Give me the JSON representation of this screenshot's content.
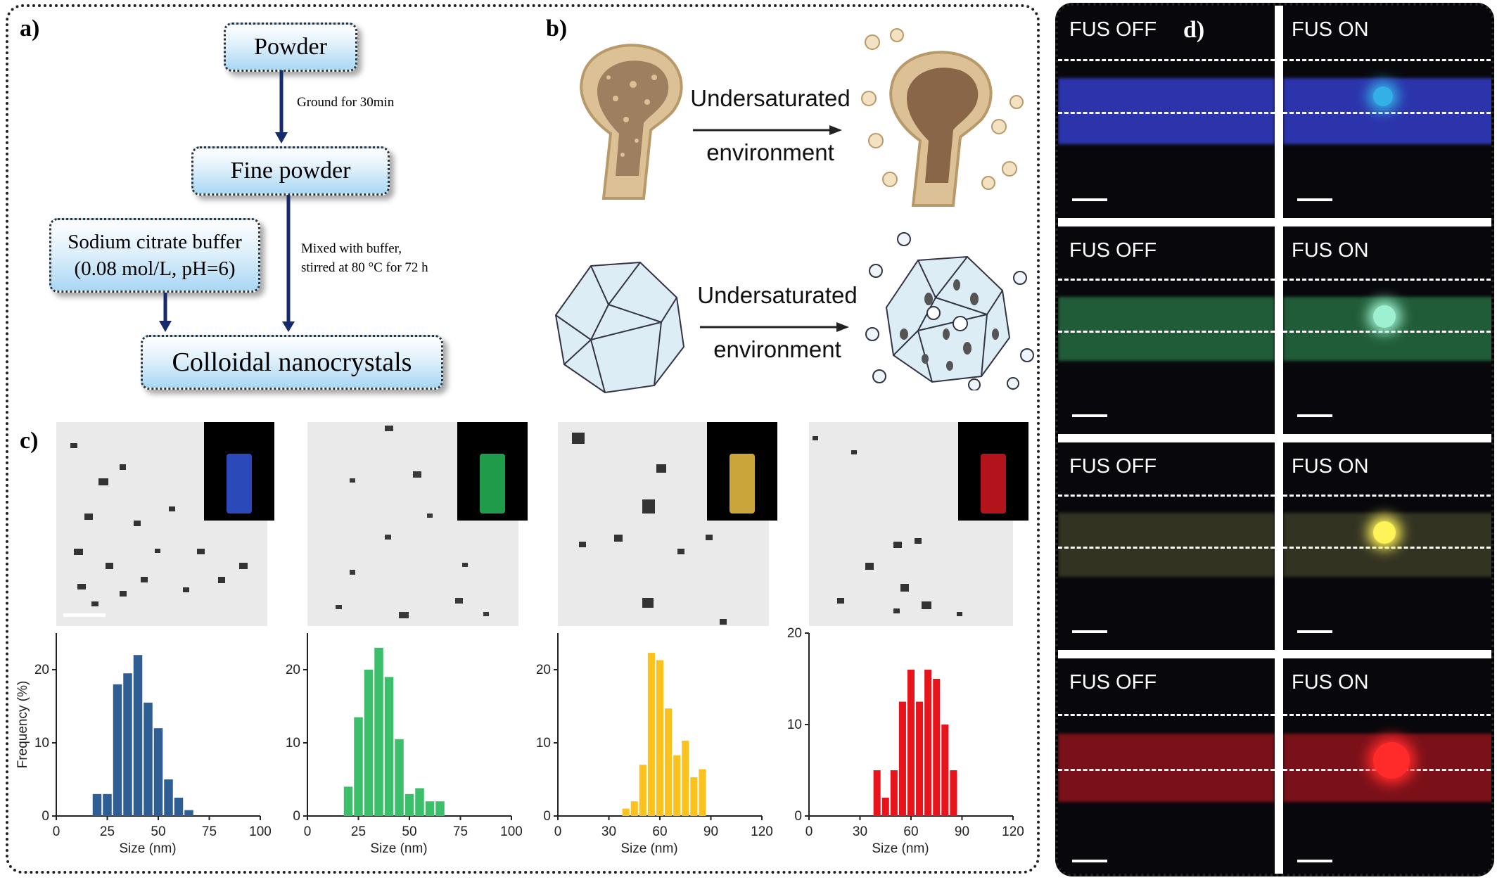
{
  "labels": {
    "a": "a)",
    "b": "b)",
    "c": "c)",
    "d": "d)"
  },
  "flowchart": {
    "powder": "Powder",
    "step1": "Ground for 30min",
    "fine_powder": "Fine powder",
    "buffer_line1": "Sodium citrate buffer",
    "buffer_line2": "(0.08 mol/L, pH=6)",
    "step2_line1": "Mixed with buffer,",
    "step2_line2": "stirred at 80 °C for 72 h",
    "product": "Colloidal nanocrystals"
  },
  "process": {
    "top_line1": "Undersaturated",
    "top_line2": "environment",
    "bottom_line1": "Undersaturated",
    "bottom_line2": "environment"
  },
  "histograms": {
    "ylabel": "Frequency (%)",
    "xlabel": "Size (nm)"
  },
  "fus": {
    "off": "FUS OFF",
    "on": "FUS ON"
  },
  "colors": {
    "blue": "#2e5e94",
    "green": "#3cbf6b",
    "yellow": "#fbc21d",
    "red": "#e8141c"
  },
  "chart_data": [
    {
      "type": "bar",
      "color": "#2e5e94",
      "xlabel": "Size (nm)",
      "ylabel": "Frequency (%)",
      "xlim": [
        0,
        100
      ],
      "ylim": [
        0,
        25
      ],
      "xticks": [
        0,
        25,
        50,
        75,
        100
      ],
      "yticks": [
        0,
        10,
        20
      ],
      "x": [
        20,
        25,
        30,
        35,
        40,
        45,
        50,
        55,
        60,
        65,
        70,
        75,
        80
      ],
      "values": [
        3,
        3,
        18,
        19.5,
        22,
        15.5,
        12,
        5,
        2.5,
        0.8,
        0,
        0,
        0
      ]
    },
    {
      "type": "bar",
      "color": "#3cbf6b",
      "xlabel": "Size (nm)",
      "ylabel": "",
      "xlim": [
        0,
        100
      ],
      "ylim": [
        0,
        25
      ],
      "xticks": [
        0,
        25,
        50,
        75,
        100
      ],
      "yticks": [
        0,
        10,
        20
      ],
      "x": [
        20,
        25,
        30,
        35,
        40,
        45,
        50,
        55,
        60,
        65,
        70,
        75,
        80,
        85,
        90,
        95
      ],
      "values": [
        4,
        13.5,
        20,
        23,
        19,
        10.5,
        3,
        3.8,
        2,
        2,
        0,
        0,
        0,
        0,
        0,
        0
      ]
    },
    {
      "type": "bar",
      "color": "#fbc21d",
      "xlabel": "Size (nm)",
      "ylabel": "",
      "xlim": [
        0,
        120
      ],
      "ylim": [
        0,
        25
      ],
      "xticks": [
        0,
        30,
        60,
        90,
        120
      ],
      "yticks": [
        0,
        10,
        20
      ],
      "x": [
        40,
        45,
        50,
        55,
        60,
        65,
        70,
        75,
        80,
        85,
        90,
        95,
        100,
        105
      ],
      "values": [
        1,
        2,
        7,
        22.3,
        21.3,
        14.7,
        8.3,
        10.3,
        5.3,
        6.4,
        0,
        0,
        0,
        0
      ]
    },
    {
      "type": "bar",
      "color": "#e8141c",
      "xlabel": "Size (nm)",
      "ylabel": "",
      "xlim": [
        0,
        120
      ],
      "ylim": [
        0,
        20
      ],
      "xticks": [
        0,
        30,
        60,
        90,
        120
      ],
      "yticks": [
        0,
        10,
        20
      ],
      "x": [
        40,
        45,
        50,
        55,
        60,
        65,
        70,
        75,
        80,
        85,
        90,
        95,
        100,
        105
      ],
      "values": [
        5,
        2,
        5,
        12.5,
        16,
        12.5,
        16,
        15,
        10,
        5,
        0,
        0,
        0,
        0
      ]
    }
  ]
}
